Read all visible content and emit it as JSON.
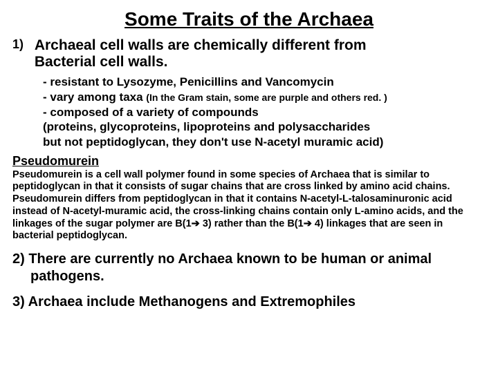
{
  "title": "Some Traits of the Archaea",
  "point1": {
    "num": "1)",
    "text_line1": "Archaeal cell walls are chemically different from",
    "text_line2": "Bacterial cell walls.",
    "bullets": {
      "b1": "- resistant to Lysozyme, Penicillins and Vancomycin",
      "b2_pre": "- vary among taxa  ",
      "b2_note": "(In the Gram stain, some are purple and others red. )",
      "b3": "- composed of a variety of compounds",
      "b4": "(proteins, glycoproteins, lipoproteins and polysaccharides",
      "b5": "but not peptidoglycan, they don't use N-acetyl muramic acid)"
    }
  },
  "pseudomurein": {
    "heading": "Pseudomurein",
    "body_a": "Pseudomurein is a cell wall polymer found in some species of Archaea that is similar to peptidoglycan in that it consists of sugar chains that are cross linked by amino acid chains.  Pseudomurein differs from peptidoglycan in that it contains N-acetyl-L-talosaminuronic acid instead of N-acetyl-muramic acid, the cross-linking chains contain only L-amino acids, and the linkages of the sugar polymer are B(1",
    "arrow1": "➔",
    "body_b": " 3) rather than the B(1",
    "arrow2": "➔",
    "body_c": " 4) linkages that are seen in bacterial peptidoglycan."
  },
  "point2": "2) There are currently no Archaea known to be human or animal pathogens.",
  "point3": "3) Archaea include Methanogens and Extremophiles"
}
